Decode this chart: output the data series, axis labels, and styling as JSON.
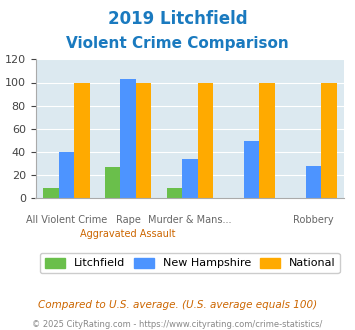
{
  "title_line1": "2019 Litchfield",
  "title_line2": "Violent Crime Comparison",
  "title_color": "#1a7abf",
  "litchfield_color": "#6abf4b",
  "nh_color": "#4d94ff",
  "national_color": "#ffaa00",
  "ylim": [
    0,
    120
  ],
  "yticks": [
    0,
    20,
    40,
    60,
    80,
    100,
    120
  ],
  "bar_width": 0.25,
  "legend_labels": [
    "Litchfield",
    "New Hampshire",
    "National"
  ],
  "footnote1": "Compared to U.S. average. (U.S. average equals 100)",
  "footnote2": "© 2025 CityRating.com - https://www.cityrating.com/crime-statistics/",
  "footnote1_color": "#cc6600",
  "footnote2_color": "#888888",
  "background_color": "#dce9f0",
  "fig_background": "#ffffff",
  "nh_values": [
    40,
    103,
    34,
    49,
    28
  ],
  "litchfield_values": [
    9,
    27,
    9,
    0,
    0
  ],
  "national_values": [
    100,
    100,
    100,
    100,
    100
  ],
  "x_positions": [
    0,
    1,
    2,
    3,
    4
  ],
  "top_labels": [
    "All Violent Crime",
    "Rape",
    "Murder & Mans...",
    "",
    "Robbery"
  ],
  "bottom_labels": [
    "",
    "Aggravated Assault",
    "",
    "",
    ""
  ]
}
